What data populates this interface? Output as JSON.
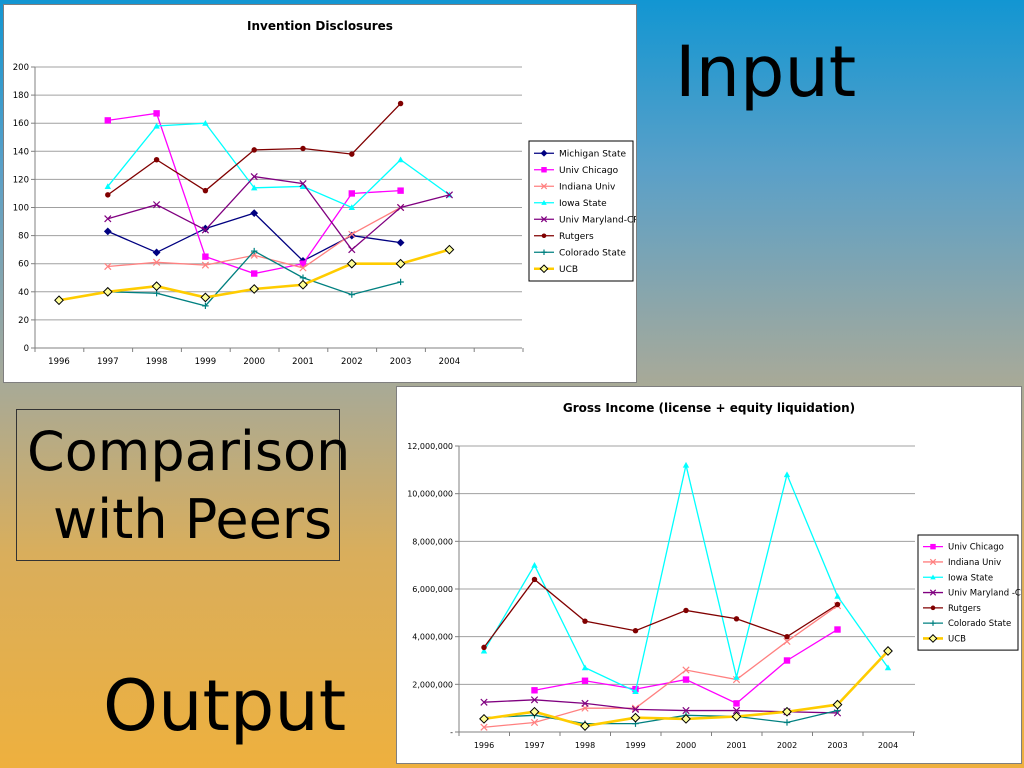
{
  "slide": {
    "input_label": "Input",
    "output_label": "Output",
    "comparison_line1": "Comparison",
    "comparison_line2": "with Peers"
  },
  "chart_data": [
    {
      "type": "line",
      "title": "Invention Disclosures",
      "xlabel": "",
      "ylabel": "",
      "categories": [
        "1996",
        "1997",
        "1998",
        "1999",
        "2000",
        "2001",
        "2002",
        "2003",
        "2004"
      ],
      "ylim": [
        0,
        200
      ],
      "yticks": [
        0,
        20,
        40,
        60,
        80,
        100,
        120,
        140,
        160,
        180,
        200
      ],
      "ytick_labels": [
        "0",
        "20",
        "40",
        "60",
        "80",
        "100",
        "120",
        "140",
        "160",
        "180",
        "200"
      ],
      "grid": true,
      "legend": "right",
      "series": [
        {
          "name": "Michigan State",
          "color": "#000080",
          "marker": "diamond",
          "values": [
            null,
            83,
            68,
            85,
            96,
            62,
            80,
            75,
            null
          ]
        },
        {
          "name": "Univ Chicago",
          "color": "#ff00ff",
          "marker": "square",
          "values": [
            null,
            162,
            167,
            65,
            53,
            60,
            110,
            112,
            null
          ]
        },
        {
          "name": "Indiana Univ",
          "color": "#ff8080",
          "marker": "x",
          "values": [
            null,
            58,
            61,
            59,
            66,
            57,
            81,
            100,
            null
          ]
        },
        {
          "name": "Iowa State",
          "color": "#00ffff",
          "marker": "triangle",
          "values": [
            null,
            115,
            158,
            160,
            114,
            115,
            100,
            134,
            109
          ]
        },
        {
          "name": "Univ Maryland-CP",
          "color": "#800080",
          "marker": "x",
          "values": [
            null,
            92,
            102,
            84,
            122,
            117,
            70,
            100,
            109
          ]
        },
        {
          "name": "Rutgers",
          "color": "#800000",
          "marker": "circle",
          "values": [
            null,
            109,
            134,
            112,
            141,
            142,
            138,
            174,
            null
          ]
        },
        {
          "name": "Colorado State",
          "color": "#008080",
          "marker": "plus",
          "values": [
            null,
            40,
            39,
            30,
            69,
            50,
            38,
            47,
            null
          ]
        },
        {
          "name": "UCB",
          "color": "#ffcc00",
          "marker": "diamond-open",
          "thick": true,
          "values": [
            34,
            40,
            44,
            36,
            42,
            45,
            60,
            60,
            70
          ]
        }
      ]
    },
    {
      "type": "line",
      "title": "Gross Income (license + equity liquidation)",
      "xlabel": "",
      "ylabel": "",
      "categories": [
        "1996",
        "1997",
        "1998",
        "1999",
        "2000",
        "2001",
        "2002",
        "2003",
        "2004"
      ],
      "ylim": [
        0,
        12000000
      ],
      "yticks": [
        0,
        2000000,
        4000000,
        6000000,
        8000000,
        10000000,
        12000000
      ],
      "ytick_labels": [
        "-",
        "2,000,000",
        "4,000,000",
        "6,000,000",
        "8,000,000",
        "10,000,000",
        "12,000,000"
      ],
      "grid": true,
      "legend": "right",
      "series": [
        {
          "name": "Univ Chicago",
          "color": "#ff00ff",
          "marker": "square",
          "values": [
            null,
            1750000,
            2150000,
            1800000,
            2200000,
            1200000,
            3000000,
            4300000,
            null
          ]
        },
        {
          "name": "Indiana Univ",
          "color": "#ff8080",
          "marker": "x",
          "values": [
            200000,
            400000,
            1000000,
            1000000,
            2600000,
            2200000,
            3800000,
            5300000,
            null
          ]
        },
        {
          "name": "Iowa State",
          "color": "#00ffff",
          "marker": "triangle",
          "values": [
            3400000,
            7000000,
            2700000,
            1700000,
            11200000,
            2300000,
            10800000,
            5700000,
            2700000
          ]
        },
        {
          "name": "Univ Maryland -CP",
          "color": "#800080",
          "marker": "x",
          "values": [
            1250000,
            1350000,
            1200000,
            950000,
            900000,
            900000,
            850000,
            800000,
            null
          ]
        },
        {
          "name": "Rutgers",
          "color": "#800000",
          "marker": "circle",
          "values": [
            3550000,
            6400000,
            4650000,
            4250000,
            5100000,
            4750000,
            4000000,
            5350000,
            null
          ]
        },
        {
          "name": "Colorado State",
          "color": "#008080",
          "marker": "plus",
          "values": [
            600000,
            700000,
            350000,
            350000,
            700000,
            650000,
            400000,
            900000,
            null
          ]
        },
        {
          "name": "UCB",
          "color": "#ffcc00",
          "marker": "diamond-open",
          "thick": true,
          "values": [
            550000,
            850000,
            250000,
            600000,
            550000,
            650000,
            850000,
            1150000,
            3400000
          ]
        }
      ]
    }
  ]
}
